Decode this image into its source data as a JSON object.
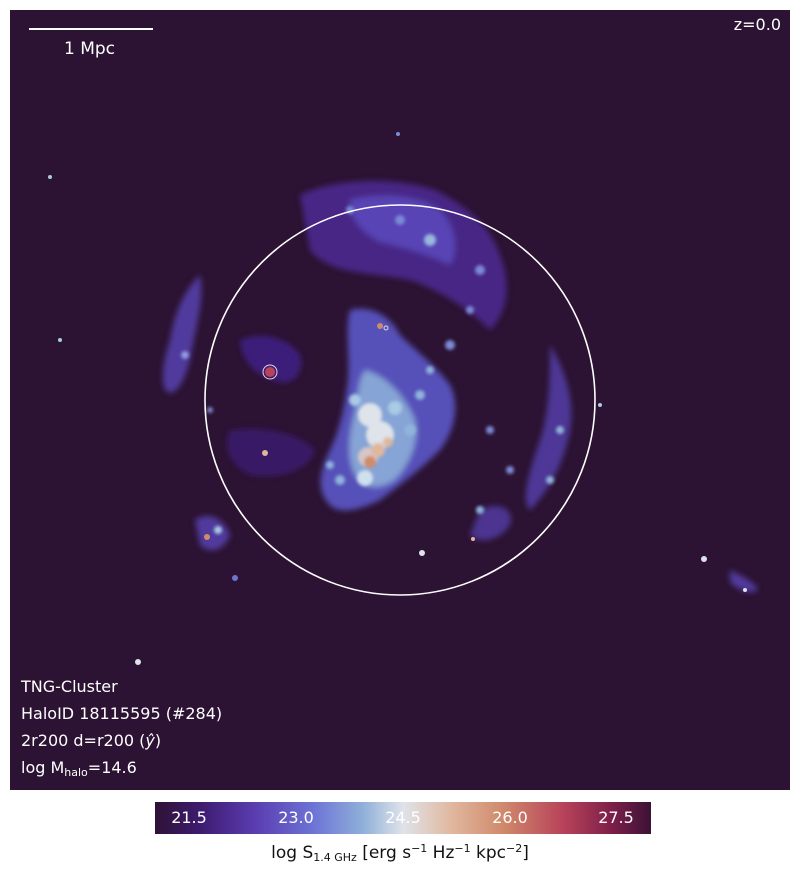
{
  "image": {
    "background_color": "#2c1333",
    "scale_bar_label": "1 Mpc",
    "redshift_label": "z=0.0",
    "info": {
      "simulation": "TNG-Cluster",
      "halo": "HaloID 18115595 (#284)",
      "size_prefix": "2r200 d=r200 (",
      "size_axis": "ŷ",
      "size_suffix": ")",
      "mass_prefix": "log M",
      "mass_subscript": "halo",
      "mass_suffix": "=14.6"
    }
  },
  "colorbar": {
    "ticks": [
      "21.5",
      "23.0",
      "24.5",
      "26.0",
      "27.5"
    ],
    "label_parts": {
      "prefix": "log S",
      "sub": "1.4 GHz",
      "unit_a": " [erg s",
      "exp_a": "−1",
      "unit_b": " Hz",
      "exp_b": "−1",
      "unit_c": " kpc",
      "exp_c": "−2",
      "suffix": "]"
    }
  }
}
